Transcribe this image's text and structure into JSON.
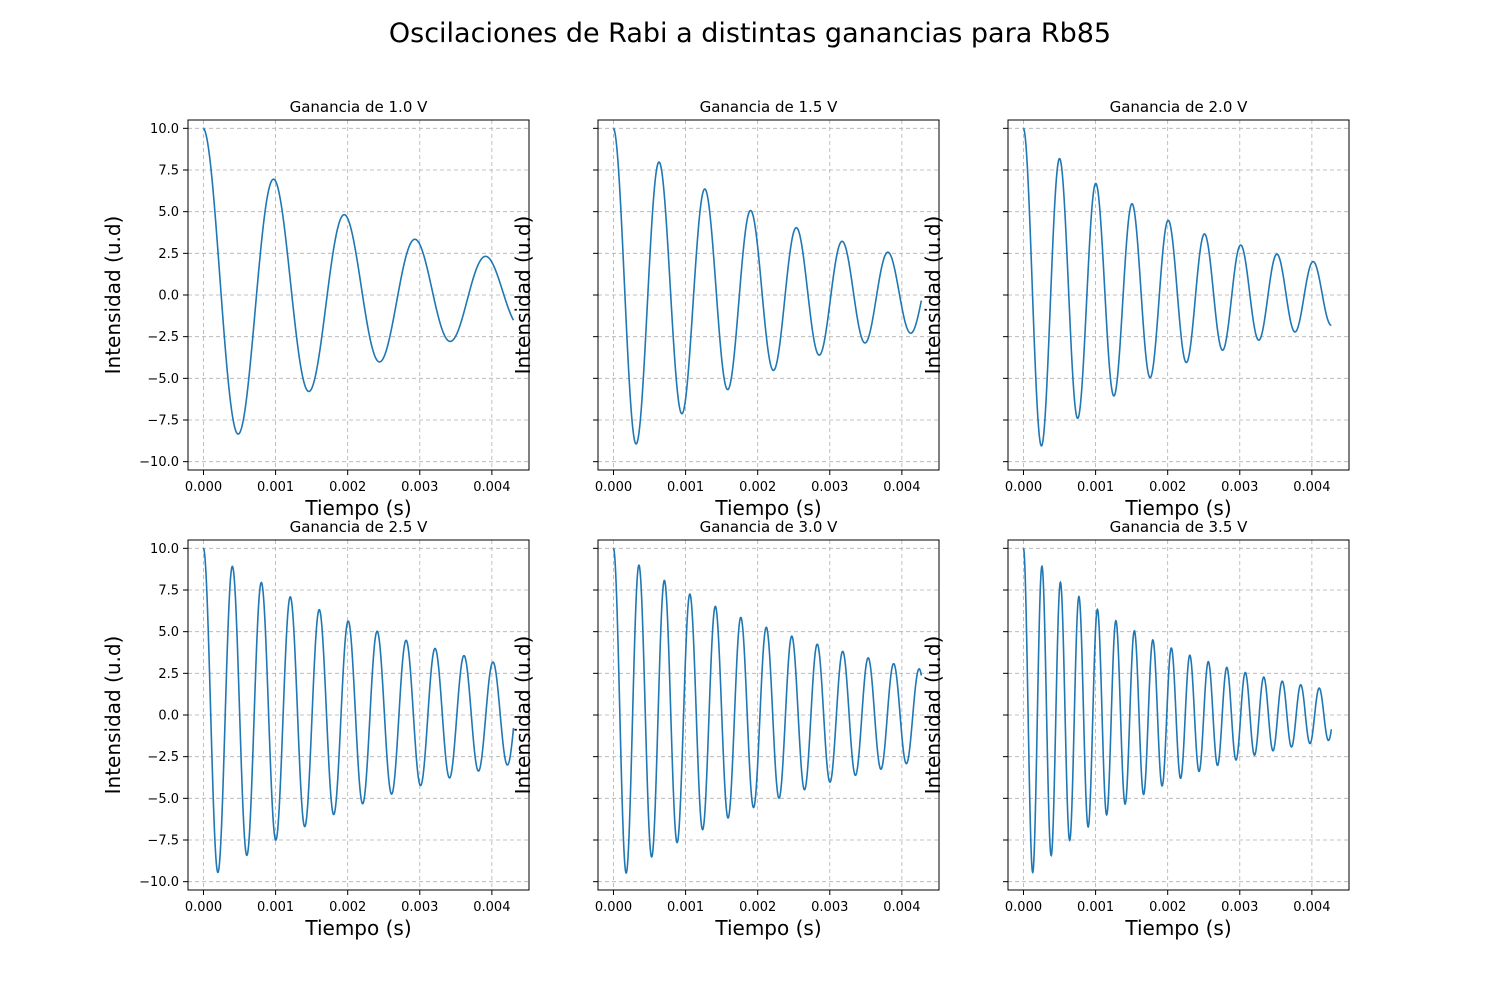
{
  "figure_title": "Oscilaciones de Rabi a distintas ganancias para Rb85",
  "colors": {
    "line": "#1f77b4",
    "grid": "#b0b0b0"
  },
  "chart_data": [
    {
      "type": "line",
      "title": "Ganancia de 1.0 V",
      "xlabel": "Tiempo (s)",
      "ylabel": "Intensidad (u.d)",
      "xlim": [
        -0.000215,
        0.004515
      ],
      "ylim": [
        -10.5,
        10.5
      ],
      "xticks": [
        "0.000",
        "0.001",
        "0.002",
        "0.003",
        "0.004"
      ],
      "yticks": [
        "10.0",
        "7.5",
        "5.0",
        "2.5",
        "0.0",
        "−2.5",
        "−5.0",
        "−7.5",
        "−10.0"
      ],
      "show_ytick_labels": true,
      "grid": true,
      "series": [
        {
          "color": "#1f77b4",
          "model": "damped_cosine",
          "amplitude": 10.0,
          "frequency_hz": 1020,
          "decay_tau_s": 0.00268,
          "t_start": 0.0,
          "t_end": 0.0043
        }
      ]
    },
    {
      "type": "line",
      "title": "Ganancia de 1.5 V",
      "xlabel": "Tiempo (s)",
      "ylabel": "Intensidad (u.d)",
      "xlim": [
        -0.000215,
        0.004515
      ],
      "ylim": [
        -10.5,
        10.5
      ],
      "xticks": [
        "0.000",
        "0.001",
        "0.002",
        "0.003",
        "0.004"
      ],
      "yticks": [
        "10.0",
        "7.5",
        "5.0",
        "2.5",
        "0.0",
        "−2.5",
        "−5.0",
        "−7.5",
        "−10.0"
      ],
      "show_ytick_labels": false,
      "grid": true,
      "series": [
        {
          "color": "#1f77b4",
          "model": "damped_cosine",
          "amplitude": 10.0,
          "frequency_hz": 1575,
          "decay_tau_s": 0.0028,
          "t_start": 0.0,
          "t_end": 0.00427
        }
      ]
    },
    {
      "type": "line",
      "title": "Ganancia de 2.0 V",
      "xlabel": "Tiempo (s)",
      "ylabel": "Intensidad (u.d)",
      "xlim": [
        -0.000215,
        0.004515
      ],
      "ylim": [
        -10.5,
        10.5
      ],
      "xticks": [
        "0.000",
        "0.001",
        "0.002",
        "0.003",
        "0.004"
      ],
      "yticks": [
        "10.0",
        "7.5",
        "5.0",
        "2.5",
        "0.0",
        "−2.5",
        "−5.0",
        "−7.5",
        "−10.0"
      ],
      "show_ytick_labels": false,
      "grid": true,
      "series": [
        {
          "color": "#1f77b4",
          "model": "damped_cosine",
          "amplitude": 10.0,
          "frequency_hz": 1990,
          "decay_tau_s": 0.0025,
          "t_start": 0.0,
          "t_end": 0.00427
        }
      ]
    },
    {
      "type": "line",
      "title": "Ganancia de 2.5 V",
      "xlabel": "Tiempo (s)",
      "ylabel": "Intensidad (u.d)",
      "xlim": [
        -0.000215,
        0.004515
      ],
      "ylim": [
        -10.5,
        10.5
      ],
      "xticks": [
        "0.000",
        "0.001",
        "0.002",
        "0.003",
        "0.004"
      ],
      "yticks": [
        "10.0",
        "7.5",
        "5.0",
        "2.5",
        "0.0",
        "−2.5",
        "−5.0",
        "−7.5",
        "−10.0"
      ],
      "show_ytick_labels": true,
      "grid": true,
      "series": [
        {
          "color": "#1f77b4",
          "model": "damped_cosine",
          "amplitude": 10.0,
          "frequency_hz": 2490,
          "decay_tau_s": 0.0035,
          "t_start": 0.0,
          "t_end": 0.0043
        }
      ]
    },
    {
      "type": "line",
      "title": "Ganancia de 3.0 V",
      "xlabel": "Tiempo (s)",
      "ylabel": "Intensidad (u.d)",
      "xlim": [
        -0.000215,
        0.004515
      ],
      "ylim": [
        -10.5,
        10.5
      ],
      "xticks": [
        "0.000",
        "0.001",
        "0.002",
        "0.003",
        "0.004"
      ],
      "yticks": [
        "10.0",
        "7.5",
        "5.0",
        "2.5",
        "0.0",
        "−2.5",
        "−5.0",
        "−7.5",
        "−10.0"
      ],
      "show_ytick_labels": false,
      "grid": true,
      "series": [
        {
          "color": "#1f77b4",
          "model": "damped_cosine",
          "amplitude": 10.0,
          "frequency_hz": 2830,
          "decay_tau_s": 0.0033,
          "t_start": 0.0,
          "t_end": 0.00427
        }
      ]
    },
    {
      "type": "line",
      "title": "Ganancia de 3.5 V",
      "xlabel": "Tiempo (s)",
      "ylabel": "Intensidad (u.d)",
      "xlim": [
        -0.000215,
        0.004515
      ],
      "ylim": [
        -10.5,
        10.5
      ],
      "xticks": [
        "0.000",
        "0.001",
        "0.002",
        "0.003",
        "0.004"
      ],
      "yticks": [
        "10.0",
        "7.5",
        "5.0",
        "2.5",
        "0.0",
        "−2.5",
        "−5.0",
        "−7.5",
        "−10.0"
      ],
      "show_ytick_labels": false,
      "grid": true,
      "series": [
        {
          "color": "#1f77b4",
          "model": "damped_cosine",
          "amplitude": 10.0,
          "frequency_hz": 3900,
          "decay_tau_s": 0.00225,
          "t_start": 0.0,
          "t_end": 0.00427
        }
      ]
    }
  ]
}
